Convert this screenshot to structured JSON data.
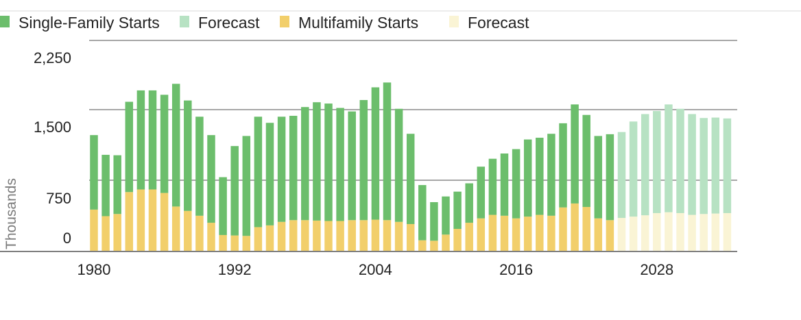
{
  "chart_data": {
    "type": "bar",
    "stacked": true,
    "ylabel": "Thousands",
    "ylim": [
      0,
      2400
    ],
    "y_ticks": [
      "0",
      "750",
      "1,500",
      "2,250"
    ],
    "x_ticks": [
      "1980",
      "1992",
      "2004",
      "2016",
      "2028"
    ],
    "x": [
      1980,
      1981,
      1982,
      1983,
      1984,
      1985,
      1986,
      1987,
      1988,
      1989,
      1990,
      1991,
      1992,
      1993,
      1994,
      1995,
      1996,
      1997,
      1998,
      1999,
      2000,
      2001,
      2002,
      2003,
      2004,
      2005,
      2006,
      2007,
      2008,
      2009,
      2010,
      2011,
      2012,
      2013,
      2014,
      2015,
      2016,
      2017,
      2018,
      2019,
      2020,
      2021,
      2022,
      2023,
      2024,
      2025,
      2026,
      2027,
      2028,
      2029,
      2030,
      2031,
      2032,
      2033,
      2034
    ],
    "forecast_start": 2025,
    "legend": [
      {
        "label": "Single-Family Starts",
        "color": "#6cbe6c"
      },
      {
        "label": "Forecast",
        "color": "#b7e2c3"
      },
      {
        "label": "Multifamily Starts",
        "color": "#f2cf6b"
      },
      {
        "label": "Forecast",
        "color": "#faf4d5"
      }
    ],
    "series": [
      {
        "name": "Multifamily Starts",
        "values": [
          470,
          395,
          420,
          670,
          700,
          700,
          660,
          505,
          455,
          400,
          320,
          180,
          175,
          170,
          270,
          290,
          330,
          350,
          350,
          345,
          340,
          340,
          350,
          350,
          355,
          350,
          330,
          305,
          120,
          115,
          185,
          250,
          320,
          370,
          410,
          400,
          370,
          390,
          410,
          400,
          495,
          540,
          500,
          370,
          350,
          375,
          390,
          405,
          430,
          440,
          430,
          410,
          420,
          425,
          430
        ]
      },
      {
        "name": "Single-Family Starts",
        "values": [
          850,
          700,
          670,
          1030,
          1130,
          1130,
          1120,
          1400,
          1260,
          1130,
          1000,
          660,
          1020,
          1140,
          1260,
          1170,
          1200,
          1190,
          1290,
          1350,
          1340,
          1290,
          1240,
          1370,
          1510,
          1570,
          1290,
          1030,
          630,
          440,
          435,
          425,
          450,
          590,
          640,
          710,
          790,
          880,
          880,
          935,
          960,
          1130,
          1050,
          940,
          980,
          980,
          1085,
          1155,
          1165,
          1230,
          1190,
          1150,
          1095,
          1095,
          1080
        ]
      }
    ]
  }
}
